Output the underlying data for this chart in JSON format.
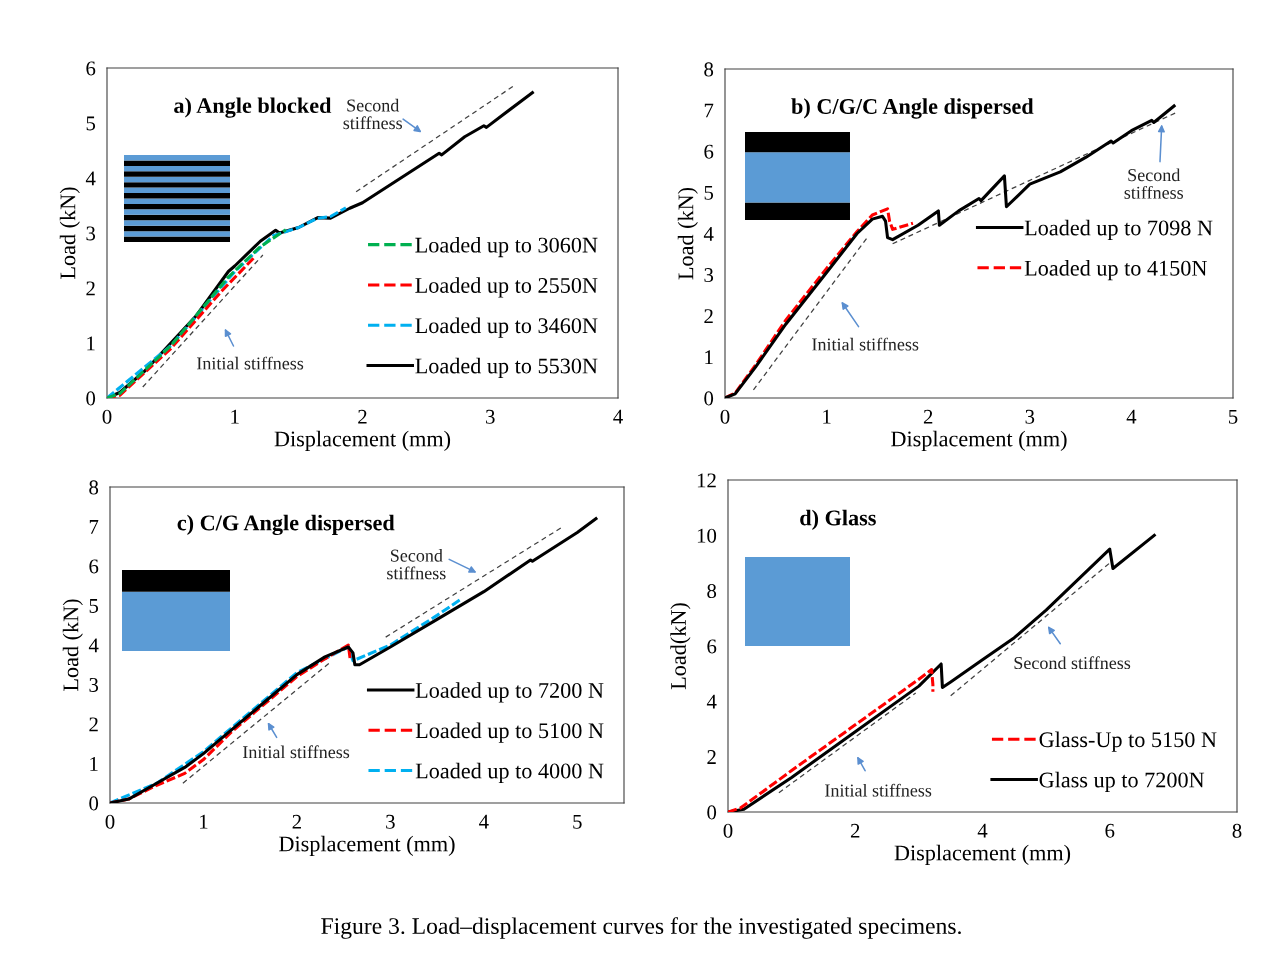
{
  "chart_data": [
    {
      "type": "line",
      "title": "a) Angle blocked",
      "xlabel": "Displacement (mm)",
      "ylabel": "Load (kN)",
      "xlim": [
        0,
        4
      ],
      "ylim": [
        0,
        6
      ],
      "xticks": [
        0,
        1,
        2,
        3,
        4
      ],
      "yticks": [
        0,
        1,
        2,
        3,
        4,
        5,
        6
      ],
      "grid": false,
      "legend": "bottom right",
      "series": [
        {
          "name": "Loaded up to 3060N",
          "color": "#00b050",
          "line_style": "dashed",
          "x": [
            0,
            0.1,
            0.5,
            0.95,
            1.2,
            1.4
          ],
          "values": [
            0,
            0.08,
            0.95,
            2.2,
            2.75,
            3.06
          ]
        },
        {
          "name": "Loaded up to 2550N",
          "color": "#ff0000",
          "line_style": "dashed",
          "x": [
            0,
            0.1,
            0.5,
            0.9,
            1.15
          ],
          "values": [
            0,
            0.05,
            0.9,
            1.95,
            2.55
          ]
        },
        {
          "name": "Loaded up to 3460N",
          "color": "#00b0f0",
          "line_style": "dashed",
          "x": [
            0,
            0.5,
            1.0,
            1.3,
            1.5,
            1.65,
            1.75,
            1.87
          ],
          "values": [
            0,
            0.95,
            2.3,
            2.95,
            3.1,
            3.27,
            3.3,
            3.46
          ]
        },
        {
          "name": "Loaded up to 5530N",
          "color": "#000000",
          "line_style": "solid",
          "x": [
            0,
            0.1,
            0.3,
            0.5,
            0.7,
            0.95,
            1.0,
            1.2,
            1.32,
            1.35,
            1.5,
            1.65,
            1.75,
            1.9,
            2.0,
            2.3,
            2.6,
            2.62,
            2.8,
            2.95,
            2.97,
            3.1,
            3.33
          ],
          "values": [
            0,
            0.1,
            0.5,
            1.0,
            1.5,
            2.3,
            2.4,
            2.85,
            3.05,
            3.0,
            3.1,
            3.28,
            3.27,
            3.45,
            3.55,
            4.0,
            4.45,
            4.42,
            4.75,
            4.95,
            4.92,
            5.15,
            5.55
          ]
        },
        {
          "color": "#404040",
          "line_style": "dashed",
          "x": [
            0.28,
            1.22
          ],
          "values": [
            0.2,
            2.6
          ]
        },
        {
          "color": "#404040",
          "line_style": "dashed",
          "x": [
            1.95,
            3.2
          ],
          "values": [
            3.75,
            5.7
          ]
        }
      ],
      "annotations": [
        "Initial stiffness",
        "Second\nstiffness"
      ]
    },
    {
      "type": "line",
      "title": "b) C/G/C Angle dispersed",
      "xlabel": "Displacement (mm)",
      "ylabel": "Load (kN)",
      "xlim": [
        0,
        5
      ],
      "ylim": [
        0,
        8
      ],
      "xticks": [
        0,
        1,
        2,
        3,
        4,
        5
      ],
      "yticks": [
        0,
        1,
        2,
        3,
        4,
        5,
        6,
        7,
        8
      ],
      "grid": false,
      "legend": "right",
      "series": [
        {
          "name": "Loaded up to 7098 N",
          "color": "#000000",
          "line_style": "solid",
          "x": [
            0,
            0.1,
            0.3,
            0.6,
            1.0,
            1.3,
            1.45,
            1.55,
            1.58,
            1.6,
            1.65,
            1.9,
            2.1,
            2.11,
            2.3,
            2.5,
            2.52,
            2.75,
            2.77,
            3.0,
            3.3,
            3.55,
            3.8,
            3.82,
            4.0,
            4.2,
            4.22,
            4.42
          ],
          "values": [
            0,
            0.1,
            0.75,
            1.8,
            3.05,
            4.0,
            4.35,
            4.42,
            4.3,
            3.9,
            3.85,
            4.2,
            4.55,
            4.2,
            4.55,
            4.85,
            4.8,
            5.4,
            4.65,
            5.2,
            5.5,
            5.85,
            6.25,
            6.2,
            6.5,
            6.75,
            6.7,
            7.1
          ]
        },
        {
          "name": "Loaded up to 4150N",
          "color": "#ff0000",
          "line_style": "dashed",
          "x": [
            0,
            0.1,
            0.3,
            0.6,
            1.0,
            1.3,
            1.45,
            1.6,
            1.62,
            1.65,
            1.85
          ],
          "values": [
            0,
            0.12,
            0.8,
            1.9,
            3.15,
            4.05,
            4.45,
            4.6,
            4.3,
            4.1,
            4.25
          ]
        },
        {
          "color": "#404040",
          "line_style": "dashed",
          "x": [
            0.28,
            1.4
          ],
          "values": [
            0.2,
            3.9
          ]
        },
        {
          "color": "#404040",
          "line_style": "dashed",
          "x": [
            1.65,
            4.45
          ],
          "values": [
            3.75,
            6.95
          ]
        }
      ],
      "annotations": [
        "Initial stiffness",
        "Second\nstiffness"
      ]
    },
    {
      "type": "line",
      "title": "c) C/G Angle dispersed",
      "xlabel": "Displacement (mm)",
      "ylabel": "Load (kN)",
      "xlim": [
        0,
        5.5
      ],
      "ylim": [
        0,
        8
      ],
      "xticks": [
        0,
        1,
        2,
        3,
        4,
        5
      ],
      "yticks": [
        0,
        1,
        2,
        3,
        4,
        5,
        6,
        7,
        8
      ],
      "grid": false,
      "legend": "bottom right",
      "series": [
        {
          "name": "Loaded up to 7200 N",
          "color": "#000000",
          "line_style": "solid",
          "x": [
            0,
            0.2,
            0.5,
            0.8,
            1.0,
            1.3,
            1.6,
            2.0,
            2.3,
            2.55,
            2.6,
            2.62,
            2.67,
            3.0,
            3.5,
            4.0,
            4.5,
            4.52,
            5.0,
            5.2
          ],
          "values": [
            0,
            0.1,
            0.5,
            0.9,
            1.25,
            1.85,
            2.45,
            3.25,
            3.7,
            3.95,
            3.8,
            3.5,
            3.5,
            3.95,
            4.65,
            5.35,
            6.15,
            6.12,
            6.85,
            7.2
          ]
        },
        {
          "name": "Loaded up to 5100 N",
          "color": "#ff0000",
          "line_style": "dashed",
          "x": [
            0,
            0.2,
            0.5,
            0.8,
            1.0,
            1.3,
            1.6,
            2.0,
            2.3,
            2.55,
            2.57
          ],
          "values": [
            0,
            0.1,
            0.45,
            0.75,
            1.1,
            1.8,
            2.4,
            3.2,
            3.65,
            4.0,
            3.65
          ]
        },
        {
          "name": "Loaded up to 4000 N",
          "color": "#00b0f0",
          "line_style": "dashed",
          "x": [
            0,
            0.5,
            1.0,
            1.6,
            2.0,
            2.55,
            2.6,
            3.0,
            3.5,
            3.75
          ],
          "values": [
            0,
            0.5,
            1.3,
            2.5,
            3.3,
            3.95,
            3.6,
            4.0,
            4.75,
            5.15
          ]
        },
        {
          "color": "#404040",
          "line_style": "dashed",
          "x": [
            0.78,
            2.35
          ],
          "values": [
            0.5,
            3.55
          ]
        },
        {
          "color": "#404040",
          "line_style": "dashed",
          "x": [
            2.95,
            4.85
          ],
          "values": [
            4.2,
            7.0
          ]
        }
      ],
      "annotations": [
        "Initial stiffness",
        "Second\nstiffness"
      ]
    },
    {
      "type": "line",
      "title": "d) Glass",
      "xlabel": "Displacement (mm)",
      "ylabel": "Load(kN)",
      "xlim": [
        0,
        8
      ],
      "ylim": [
        0,
        12
      ],
      "xticks": [
        0,
        2,
        4,
        6,
        8
      ],
      "yticks": [
        0,
        2,
        4,
        6,
        8,
        10,
        12
      ],
      "grid": false,
      "legend": "bottom right",
      "series": [
        {
          "name": "Glass-Up to 5150 N",
          "color": "#ff0000",
          "line_style": "dashed",
          "x": [
            0,
            0.2,
            1,
            2,
            3,
            3.2,
            3.22,
            3.22
          ],
          "values": [
            0,
            0.15,
            1.5,
            3.15,
            4.8,
            5.15,
            4.6,
            4.35
          ]
        },
        {
          "name": "Glass up to 7200N",
          "color": "#000000",
          "line_style": "solid",
          "x": [
            0,
            0.25,
            1,
            2,
            3,
            3.35,
            3.37,
            3.5,
            4,
            4.5,
            5,
            5.5,
            6.0,
            6.05,
            6.7
          ],
          "values": [
            0,
            0.1,
            1.25,
            2.9,
            4.55,
            5.35,
            4.5,
            4.7,
            5.5,
            6.3,
            7.3,
            8.4,
            9.5,
            8.8,
            10.0
          ]
        },
        {
          "color": "#404040",
          "line_style": "dashed",
          "x": [
            0.8,
            2.95
          ],
          "values": [
            0.7,
            4.3
          ]
        },
        {
          "color": "#404040",
          "line_style": "dashed",
          "x": [
            3.5,
            6.0
          ],
          "values": [
            4.2,
            9.0
          ]
        }
      ],
      "annotations": [
        "Initial stiffness",
        "Second stiffness",
        "Figure 3. Load–displacement curves for the investigated specimens."
      ]
    }
  ]
}
